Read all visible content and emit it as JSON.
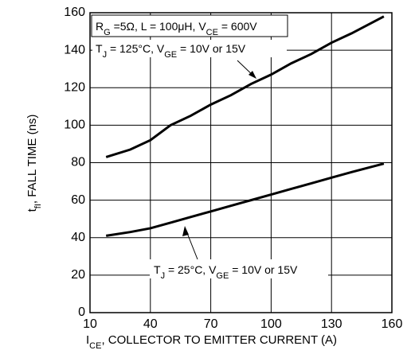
{
  "chart_data": {
    "type": "line",
    "y_label": [
      "t",
      "fI",
      ", FALL TIME (ns)"
    ],
    "x_label": [
      "I",
      "CE",
      ", COLLECTOR  TO  EMITTER  CURRENT (A)"
    ],
    "xlim": [
      10,
      160
    ],
    "ylim": [
      0,
      160
    ],
    "xticks": [
      10,
      40,
      70,
      100,
      130,
      160
    ],
    "yticks": [
      0,
      20,
      40,
      60,
      80,
      100,
      120,
      140,
      160
    ],
    "grid": true,
    "series": [
      {
        "name": "T_J = 125°C",
        "color": "#000000",
        "x": [
          18,
          30,
          40,
          50,
          60,
          70,
          80,
          90,
          100,
          110,
          120,
          130,
          140,
          156
        ],
        "values": [
          83,
          87,
          92,
          100,
          105,
          111,
          116,
          122,
          127,
          133,
          138,
          144,
          149,
          158
        ]
      },
      {
        "name": "T_J = 25°C",
        "color": "#000000",
        "x": [
          18,
          30,
          40,
          50,
          60,
          70,
          80,
          90,
          100,
          110,
          120,
          130,
          140,
          156
        ],
        "values": [
          41,
          43,
          45,
          48,
          51,
          54,
          57,
          60,
          63,
          66,
          69,
          72,
          75,
          79.5
        ]
      }
    ],
    "annotations": [
      {
        "parts": [
          "R",
          "G",
          " =5Ω, L = 100μH, V",
          "CE",
          " = 600V"
        ]
      },
      {
        "parts": [
          "T",
          "J",
          " = 125°C, V",
          "GE",
          " = 10V  or 15V"
        ]
      },
      {
        "parts": [
          "T",
          "J",
          " = 25°C, V",
          "GE",
          " = 10V or 15V"
        ]
      }
    ]
  }
}
